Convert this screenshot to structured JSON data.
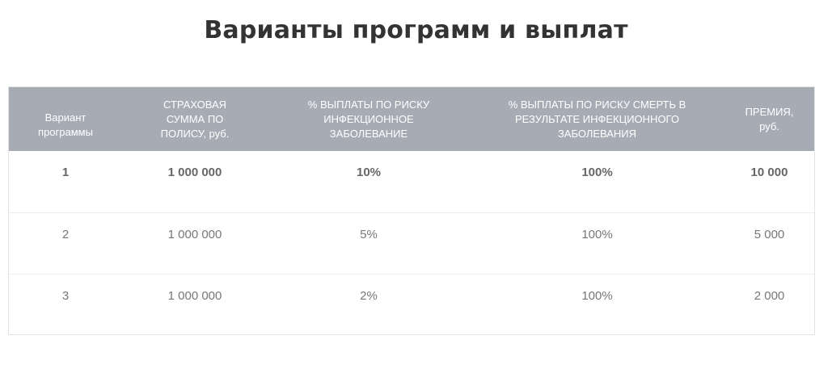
{
  "title": "Варианты программ и выплат",
  "table": {
    "headers": {
      "variant": [
        "Вариант",
        "программы"
      ],
      "sum": [
        "СТРАХОВАЯ",
        "СУММА ПО",
        "ПОЛИСУ, руб."
      ],
      "payout_illness": [
        "% ВЫПЛАТЫ ПО РИСКУ",
        "ИНФЕКЦИОННОЕ",
        "ЗАБОЛЕВАНИЕ"
      ],
      "payout_death": [
        "% ВЫПЛАТЫ ПО РИСКУ СМЕРТЬ В",
        "РЕЗУЛЬТАТЕ ИНФЕКЦИОННОГО",
        "ЗАБОЛЕВАНИЯ"
      ],
      "premium": [
        "ПРЕМИЯ,",
        "руб."
      ]
    },
    "rows": [
      {
        "variant": "1",
        "sum": "1 000 000",
        "payout_illness": "10%",
        "payout_death": "100%",
        "premium": "10 000"
      },
      {
        "variant": "2",
        "sum": "1 000 000",
        "payout_illness": "5%",
        "payout_death": "100%",
        "premium": "5 000"
      },
      {
        "variant": "3",
        "sum": "1 000 000",
        "payout_illness": "2%",
        "payout_death": "100%",
        "premium": "2 000"
      }
    ]
  }
}
